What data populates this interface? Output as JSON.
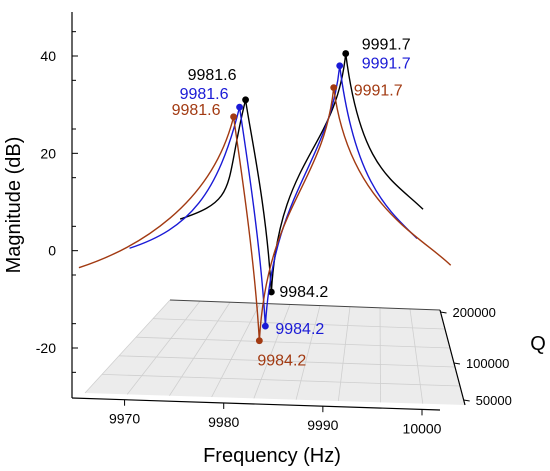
{
  "chart_data": {
    "type": "line",
    "title": "",
    "xlabel": "Frequency (Hz)",
    "ylabel": "Magnitude (dB)",
    "zlabel": "Q",
    "xlim": [
      9965,
      10004
    ],
    "ylim": [
      -30,
      50
    ],
    "x_ticks": [
      9970,
      9980,
      9990,
      10000
    ],
    "y_ticks": [
      40,
      20,
      0,
      -20
    ],
    "q_ticks": [
      200000,
      100000,
      50000
    ],
    "series": [
      {
        "color": "#000000",
        "q": 200000,
        "peaks": [
          {
            "x": 9981.6,
            "y": 31,
            "label": "9981.6"
          },
          {
            "x": 9991.7,
            "y": 40.5,
            "label": "9991.7"
          }
        ],
        "notch": {
          "x": 9984.2,
          "y": -8.5,
          "label": "9984.2"
        },
        "endpoints": {
          "start": {
            "x": 9975,
            "y": 6.5
          },
          "end": {
            "x": 9999.5,
            "y": 8.5
          }
        }
      },
      {
        "color": "#1a1ad6",
        "q": 100000,
        "peaks": [
          {
            "x": 9981.6,
            "y": 29.5,
            "label": "9981.6"
          },
          {
            "x": 9991.7,
            "y": 38,
            "label": "9991.7"
          }
        ],
        "notch": {
          "x": 9984.2,
          "y": -15.5,
          "label": "9984.2"
        },
        "endpoints": {
          "start": {
            "x": 9970.5,
            "y": 0.5
          },
          "end": {
            "x": 9999.5,
            "y": 2.5
          }
        }
      },
      {
        "color": "#a23a12",
        "q": 50000,
        "peaks": [
          {
            "x": 9981.6,
            "y": 27.5,
            "label": "9981.6"
          },
          {
            "x": 9991.7,
            "y": 33.5,
            "label": "9991.7"
          }
        ],
        "notch": {
          "x": 9984.2,
          "y": -18.5,
          "label": "9984.2"
        },
        "endpoints": {
          "start": {
            "x": 9966,
            "y": -3.5
          },
          "end": {
            "x": 10003.5,
            "y": -3
          }
        }
      }
    ],
    "colors": {
      "black": "#000000",
      "blue": "#1a1ad6",
      "brown": "#a23a12",
      "floor": "#ececec",
      "floor_grid": "#cfcfcf"
    },
    "grid": true,
    "legend": "none"
  }
}
